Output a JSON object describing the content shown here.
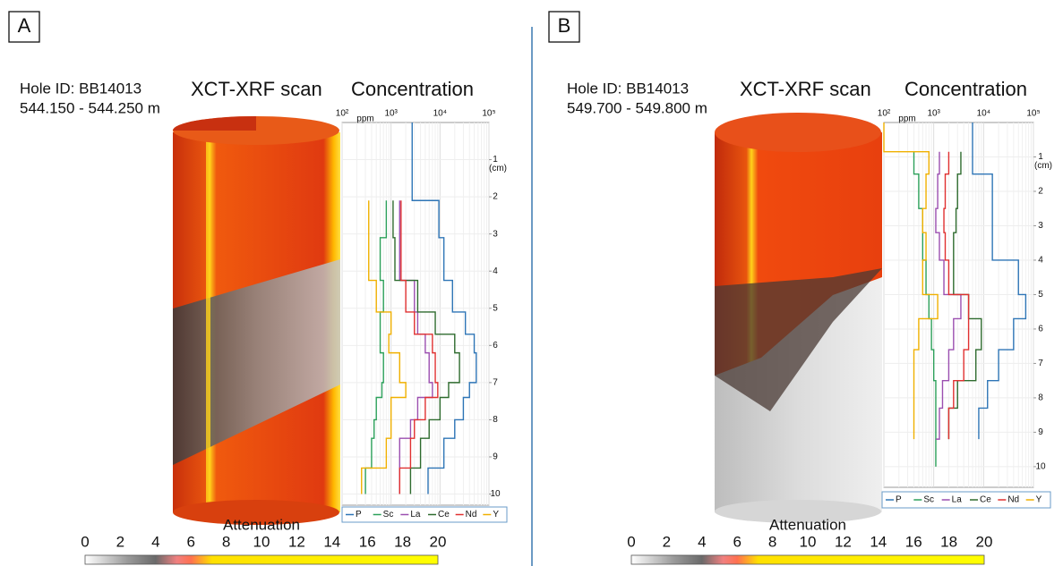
{
  "chart_data": [
    {
      "type": "line",
      "panel_label": "A",
      "hole_id": "Hole ID: BB14013",
      "depth_interval": "544.150 - 544.250 m",
      "image_title": "XCT-XRF scan",
      "title": "Concentration",
      "xlabel": "ppm",
      "ylabel": "(cm)",
      "xscale": "log",
      "grid": true,
      "legend": "bottom",
      "xlim": [
        100,
        100000
      ],
      "xticks": [
        {
          "value": 100,
          "label": "10²"
        },
        {
          "value": 1000,
          "label": "10³"
        },
        {
          "value": 10000,
          "label": "10⁴"
        },
        {
          "value": 100000,
          "label": "10⁵"
        }
      ],
      "ylim": [
        0,
        10.3
      ],
      "yticks": [
        1,
        2,
        3,
        4,
        5,
        6,
        7,
        8,
        9,
        10
      ],
      "y": [
        0,
        2.1,
        3.1,
        4.25,
        5.1,
        5.7,
        6.2,
        7.0,
        7.4,
        8.0,
        8.5,
        9.3,
        10.0
      ],
      "series": [
        {
          "name": "P",
          "color": "#2e75b6",
          "values": [
            2700,
            9500,
            12000,
            18000,
            33000,
            50000,
            55000,
            40000,
            30000,
            20000,
            12000,
            5700,
            5700
          ]
        },
        {
          "name": "Sc",
          "color": "#2ca05a",
          "values": [
            null,
            800,
            600,
            700,
            600,
            600,
            700,
            650,
            500,
            450,
            400,
            300,
            300
          ]
        },
        {
          "name": "La",
          "color": "#9b4fb0",
          "values": [
            null,
            1500,
            1500,
            3000,
            3500,
            5000,
            6000,
            7000,
            3500,
            2500,
            1500,
            1500,
            1500
          ]
        },
        {
          "name": "Ce",
          "color": "#2e6b2e",
          "values": [
            null,
            1100,
            1200,
            3500,
            8000,
            20000,
            25000,
            15000,
            10000,
            6000,
            4000,
            2500,
            2500
          ]
        },
        {
          "name": "Nd",
          "color": "#e03030",
          "values": [
            null,
            1600,
            1600,
            2000,
            3000,
            7000,
            8000,
            9000,
            5000,
            3000,
            2500,
            1500,
            1500
          ]
        },
        {
          "name": "Y",
          "color": "#f0b000",
          "values": [
            null,
            350,
            350,
            500,
            1000,
            900,
            1500,
            2000,
            1000,
            1000,
            800,
            250,
            250
          ]
        }
      ],
      "colorbar": {
        "title": "Attenuation",
        "ticks": [
          0,
          2,
          4,
          6,
          8,
          10,
          12,
          14,
          16,
          18,
          20
        ]
      }
    },
    {
      "type": "line",
      "panel_label": "B",
      "hole_id": "Hole ID: BB14013",
      "depth_interval": "549.700 - 549.800 m",
      "image_title": "XCT-XRF scan",
      "title": "Concentration",
      "xlabel": "ppm",
      "ylabel": "(cm)",
      "xscale": "log",
      "grid": true,
      "legend": "bottom",
      "xlim": [
        100,
        100000
      ],
      "xticks": [
        {
          "value": 100,
          "label": "10²"
        },
        {
          "value": 1000,
          "label": "10³"
        },
        {
          "value": 10000,
          "label": "10⁴"
        },
        {
          "value": 100000,
          "label": "10⁵"
        }
      ],
      "ylim": [
        0,
        10.6
      ],
      "yticks": [
        1,
        2,
        3,
        4,
        5,
        6,
        7,
        8,
        9,
        10
      ],
      "y": [
        0,
        0.85,
        1.5,
        2.5,
        3.2,
        4.0,
        5.0,
        5.7,
        6.6,
        7.5,
        8.3,
        9.2,
        10.0
      ],
      "series": [
        {
          "name": "P",
          "color": "#2e75b6",
          "values": [
            6000,
            6000,
            15000,
            15000,
            15000,
            50000,
            70000,
            40000,
            20000,
            12000,
            8000,
            8000,
            null
          ]
        },
        {
          "name": "Sc",
          "color": "#2ca05a",
          "values": [
            null,
            400,
            500,
            600,
            600,
            700,
            800,
            900,
            1000,
            1100,
            1100,
            1100,
            1100
          ]
        },
        {
          "name": "La",
          "color": "#9b4fb0",
          "values": [
            null,
            1300,
            1200,
            1100,
            1300,
            1600,
            3500,
            2500,
            2000,
            1500,
            1300,
            1100,
            null
          ]
        },
        {
          "name": "Ce",
          "color": "#2e6b2e",
          "values": [
            null,
            3500,
            3000,
            2800,
            2500,
            2500,
            5000,
            9000,
            7000,
            3000,
            2000,
            2000,
            null
          ]
        },
        {
          "name": "Nd",
          "color": "#e03030",
          "values": [
            null,
            2000,
            1700,
            1600,
            1700,
            2000,
            5000,
            5000,
            4000,
            2500,
            2000,
            2000,
            null
          ]
        },
        {
          "name": "Y",
          "color": "#f0b000",
          "values": [
            100,
            800,
            700,
            600,
            700,
            600,
            1200,
            500,
            400,
            400,
            400,
            400,
            null
          ]
        }
      ],
      "colorbar": {
        "title": "Attenuation",
        "ticks": [
          0,
          2,
          4,
          6,
          8,
          10,
          12,
          14,
          16,
          18,
          20
        ]
      }
    }
  ]
}
